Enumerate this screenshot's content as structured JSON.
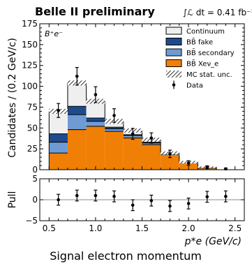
{
  "chart_data": {
    "type": "bar",
    "title": "Belle II preliminary",
    "lumi": "∫ℒ dt = 0.41 fb⁻¹",
    "channel_label": "B⁺e⁻",
    "xlabel": "p*e (GeV/c)",
    "ylabel": "Candidates / (0.2 GeV/c)",
    "caption": "Signal electron momentum",
    "xlim": [
      0.4,
      2.6
    ],
    "ylim": [
      0,
      175
    ],
    "xticks": [
      0.5,
      1.0,
      1.5,
      2.0,
      2.5
    ],
    "yticks": [
      0,
      25,
      50,
      75,
      100,
      125,
      150,
      175
    ],
    "bin_edges": [
      0.5,
      0.7,
      0.9,
      1.1,
      1.3,
      1.5,
      1.7,
      1.9,
      2.1,
      2.3,
      2.5
    ],
    "series": [
      {
        "name": "B B̄ X e ν_e",
        "color": "#f07f06",
        "values": [
          20,
          48,
          52,
          46,
          38,
          30,
          18,
          8,
          2,
          0
        ]
      },
      {
        "name": "B B̄ secondary",
        "color": "#6f9bd4",
        "values": [
          13,
          18,
          6,
          3,
          3,
          2,
          1,
          0,
          0,
          0
        ]
      },
      {
        "name": "B B̄ fake",
        "color": "#1f4b8c",
        "values": [
          10,
          10,
          4,
          2,
          1,
          1,
          0,
          0,
          0,
          0
        ]
      },
      {
        "name": "Continuum",
        "color": "#efefef",
        "values": [
          27,
          28,
          20,
          7,
          5,
          3,
          1,
          1,
          1,
          0
        ]
      }
    ],
    "mc_stat_unc_label": "MC stat. unc.",
    "mc_unc": [
      3,
      3,
      3,
      3,
      2.5,
      2.5,
      2,
      1.5,
      1,
      0.5
    ],
    "data": {
      "name": "Data",
      "x": [
        0.6,
        0.8,
        1.0,
        1.2,
        1.4,
        1.6,
        1.8,
        2.0,
        2.2,
        2.4
      ],
      "y": [
        71,
        112,
        90,
        65,
        43,
        38,
        19,
        8,
        3,
        1
      ],
      "err": [
        8.4,
        10.6,
        9.5,
        8.1,
        6.6,
        6.2,
        4.4,
        2.8,
        1.7,
        1.0
      ]
    },
    "pull": {
      "ylabel": "Pull",
      "ylim": [
        -5,
        5
      ],
      "yticks": [
        -5,
        0,
        5
      ],
      "values": [
        0.0,
        1.0,
        1.0,
        0.8,
        -1.3,
        -0.2,
        -1.5,
        -0.9,
        0.7,
        0.8
      ],
      "err": [
        1.3,
        1.3,
        1.3,
        1.3,
        1.3,
        1.3,
        1.3,
        1.3,
        1.3,
        1.3
      ]
    }
  },
  "legend": {
    "entries": [
      {
        "label": "Continuum",
        "kind": "box",
        "color": "#efefef"
      },
      {
        "label": "BB̄ fake",
        "kind": "box",
        "color": "#1f4b8c"
      },
      {
        "label": "BB̄ secondary",
        "kind": "box",
        "color": "#6f9bd4"
      },
      {
        "label": "BB̄ Xeν_e",
        "kind": "box",
        "color": "#f07f06"
      },
      {
        "label": "MC stat. unc.",
        "kind": "hatch",
        "color": "#000000"
      },
      {
        "label": "Data",
        "kind": "point",
        "color": "#000000"
      }
    ]
  }
}
